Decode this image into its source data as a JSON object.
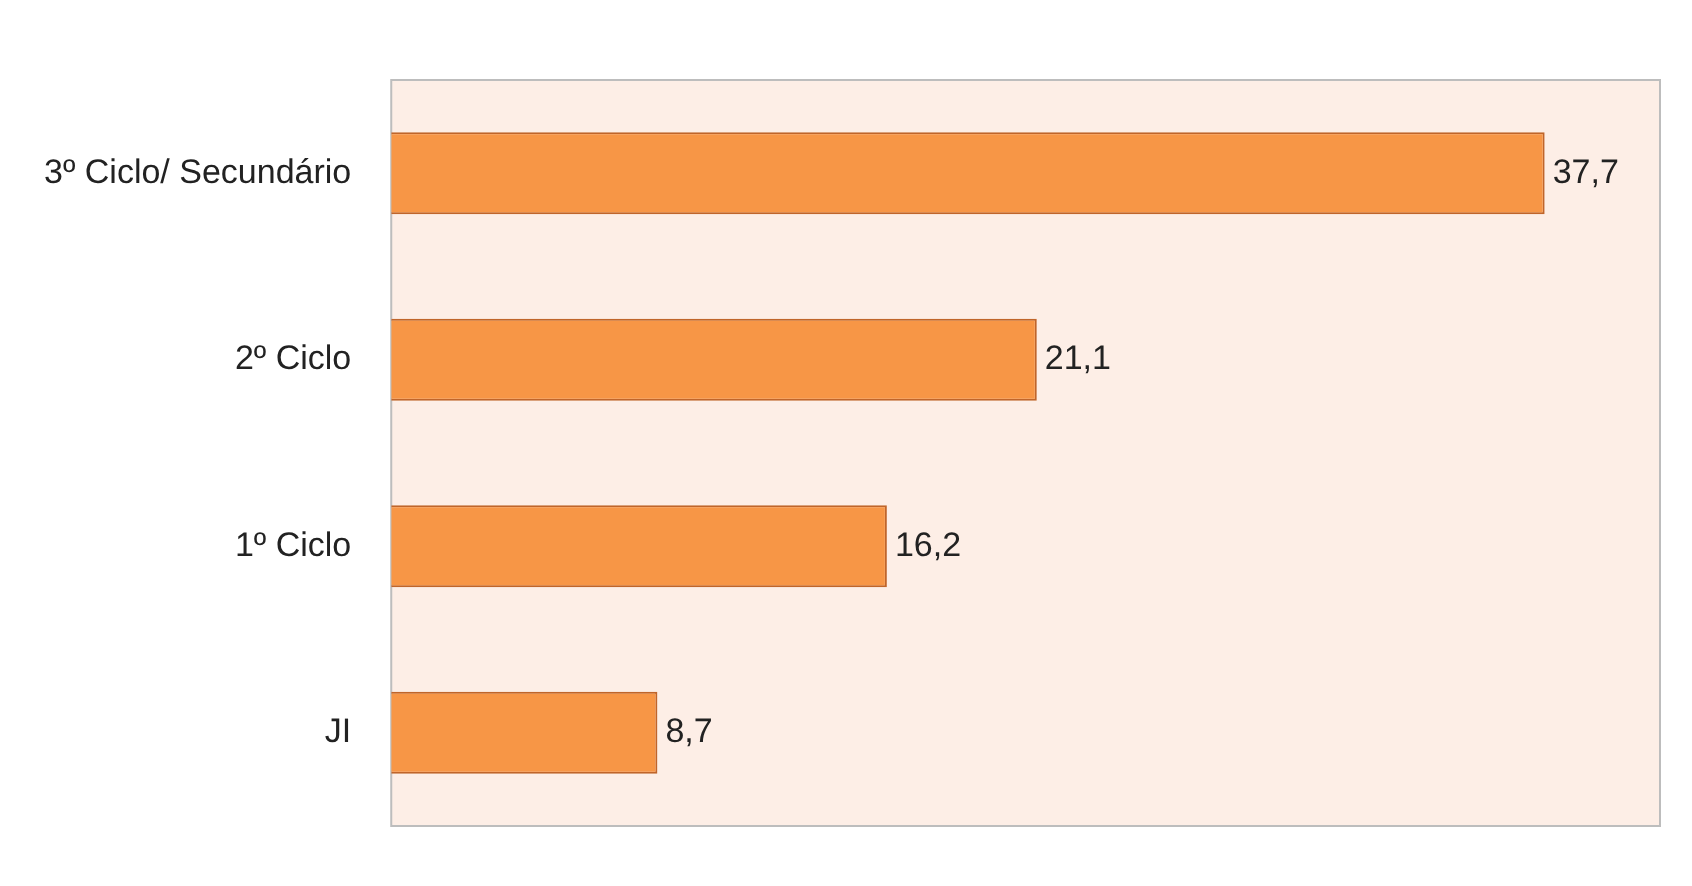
{
  "chart_data": {
    "type": "bar",
    "orientation": "horizontal",
    "categories": [
      "3º Ciclo/ Secundário",
      "2º Ciclo",
      "1º Ciclo",
      "JI"
    ],
    "values": [
      37.7,
      21.1,
      16.2,
      8.7
    ],
    "color": "#f79646",
    "value_labels": [
      "37,7",
      "21,1",
      "16,2",
      "8,7"
    ],
    "legend": false
  }
}
